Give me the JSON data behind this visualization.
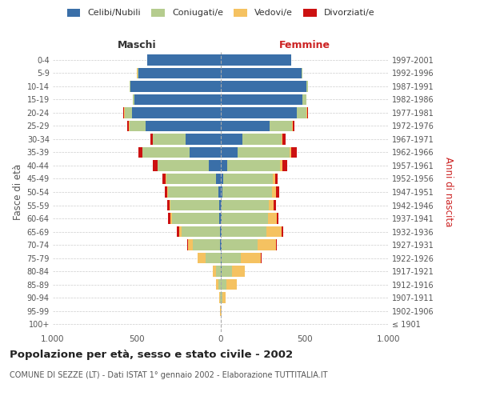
{
  "age_groups": [
    "100+",
    "95-99",
    "90-94",
    "85-89",
    "80-84",
    "75-79",
    "70-74",
    "65-69",
    "60-64",
    "55-59",
    "50-54",
    "45-49",
    "40-44",
    "35-39",
    "30-34",
    "25-29",
    "20-24",
    "15-19",
    "10-14",
    "5-9",
    "0-4"
  ],
  "birth_years": [
    "≤ 1901",
    "1902-1906",
    "1907-1911",
    "1912-1916",
    "1917-1921",
    "1922-1926",
    "1927-1931",
    "1932-1936",
    "1937-1941",
    "1942-1946",
    "1947-1951",
    "1952-1956",
    "1957-1961",
    "1962-1966",
    "1967-1971",
    "1972-1976",
    "1977-1981",
    "1982-1986",
    "1987-1991",
    "1992-1996",
    "1997-2001"
  ],
  "male": {
    "celibe": [
      0,
      0,
      0,
      0,
      0,
      0,
      5,
      5,
      10,
      10,
      15,
      30,
      70,
      185,
      210,
      450,
      530,
      515,
      540,
      490,
      440
    ],
    "coniugato": [
      0,
      2,
      5,
      15,
      30,
      90,
      160,
      230,
      280,
      290,
      300,
      295,
      305,
      280,
      195,
      95,
      40,
      10,
      5,
      5,
      0
    ],
    "vedovo": [
      0,
      2,
      5,
      15,
      20,
      50,
      30,
      15,
      10,
      5,
      5,
      5,
      0,
      0,
      0,
      5,
      5,
      0,
      0,
      5,
      0
    ],
    "divorziato": [
      0,
      0,
      0,
      0,
      0,
      0,
      5,
      10,
      15,
      15,
      15,
      20,
      30,
      25,
      15,
      5,
      5,
      0,
      0,
      0,
      0
    ]
  },
  "female": {
    "nubile": [
      0,
      0,
      2,
      2,
      5,
      5,
      5,
      5,
      5,
      5,
      10,
      15,
      40,
      100,
      130,
      290,
      450,
      485,
      510,
      480,
      420
    ],
    "coniugata": [
      0,
      2,
      8,
      30,
      60,
      115,
      215,
      265,
      275,
      280,
      295,
      295,
      310,
      310,
      230,
      135,
      60,
      25,
      10,
      5,
      0
    ],
    "vedova": [
      0,
      5,
      20,
      65,
      80,
      120,
      110,
      90,
      55,
      30,
      25,
      15,
      15,
      10,
      5,
      5,
      5,
      0,
      0,
      0,
      0
    ],
    "divorziata": [
      0,
      0,
      0,
      0,
      0,
      5,
      5,
      10,
      10,
      15,
      20,
      15,
      30,
      30,
      20,
      10,
      5,
      0,
      0,
      0,
      0
    ]
  },
  "colors": {
    "celibe": "#3a6fa8",
    "coniugato": "#b5cc8e",
    "vedovo": "#f5c261",
    "divorziato": "#cc1111"
  },
  "xlim": 1000,
  "title": "Popolazione per età, sesso e stato civile - 2002",
  "subtitle": "COMUNE DI SEZZE (LT) - Dati ISTAT 1° gennaio 2002 - Elaborazione TUTTITALIA.IT",
  "ylabel_left": "Fasce di età",
  "ylabel_right": "Anni di nascita",
  "xlabel_left": "Maschi",
  "xlabel_right": "Femmine"
}
